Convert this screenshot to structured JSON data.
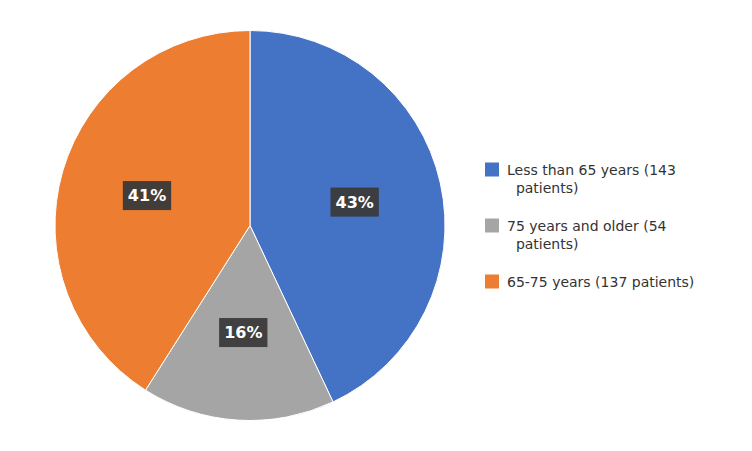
{
  "chart_data": {
    "type": "pie",
    "categories": [
      "Less than 65 years (143\n  patients)",
      "75 years and older (54\n  patients)",
      "65-75 years (137 patients)"
    ],
    "values": [
      43,
      16,
      41
    ],
    "value_labels": [
      "43%",
      "16%",
      "41%"
    ],
    "colors": [
      "#4472C4",
      "#A5A5A5",
      "#ED7D31"
    ],
    "data_labels": true,
    "legend": "right"
  }
}
